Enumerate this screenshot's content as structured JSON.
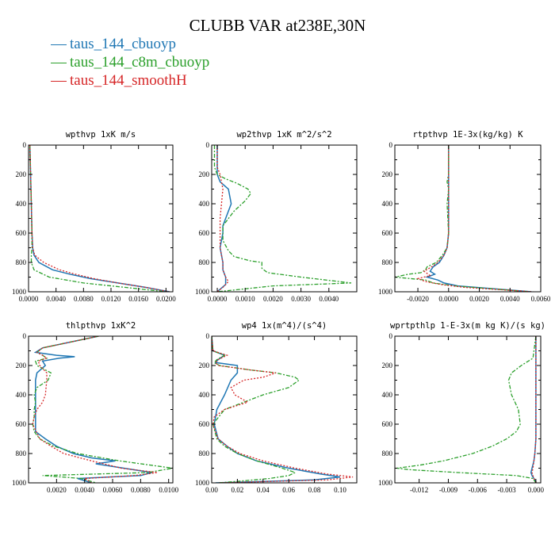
{
  "title": "CLUBB VAR at238E,30N",
  "legend": [
    {
      "name": "taus_144_cbuoyp",
      "color": "#1f77b4"
    },
    {
      "name": "taus_144_c8m_cbuoyp",
      "color": "#2ca02c"
    },
    {
      "name": "taus_144_smoothH",
      "color": "#d62728"
    }
  ],
  "chart_data": [
    {
      "type": "line",
      "title": "wpthvp  1xK m/s",
      "xlim": [
        0,
        0.021
      ],
      "ylim": [
        0,
        1000
      ],
      "y_reversed": true,
      "xticks": [
        "0.0000",
        "0.0040",
        "0.0080",
        "0.0120",
        "0.0160",
        "0.0200"
      ],
      "xtick_values": [
        0,
        0.004,
        0.008,
        0.012,
        0.016,
        0.02
      ],
      "yticks": [
        "0",
        "200",
        "400",
        "600",
        "800",
        "1000"
      ],
      "series": [
        {
          "name": "taus_144_cbuoyp",
          "y": [
            0,
            200,
            400,
            600,
            700,
            750,
            800,
            850,
            880,
            910,
            940,
            970,
            1000
          ],
          "x": [
            0.0002,
            0.0003,
            0.0004,
            0.0005,
            0.0006,
            0.0008,
            0.0015,
            0.0035,
            0.006,
            0.009,
            0.013,
            0.017,
            0.0205
          ]
        },
        {
          "name": "taus_144_c8m_cbuoyp",
          "y": [
            0,
            200,
            400,
            600,
            700,
            750,
            800,
            850,
            900,
            940,
            970,
            1000
          ],
          "x": [
            0.0002,
            0.0003,
            0.0004,
            0.0005,
            0.0005,
            0.0004,
            0.0004,
            0.0008,
            0.003,
            0.008,
            0.014,
            0.02
          ]
        },
        {
          "name": "taus_144_smoothH",
          "y": [
            0,
            200,
            400,
            600,
            700,
            750,
            800,
            850,
            880,
            910,
            940,
            970,
            1000
          ],
          "x": [
            0.0002,
            0.0003,
            0.0004,
            0.0005,
            0.0006,
            0.0009,
            0.0022,
            0.0045,
            0.0068,
            0.0095,
            0.013,
            0.017,
            0.0205
          ]
        }
      ]
    },
    {
      "type": "line",
      "title": "wp2thvp  1xK m^2/s^2",
      "xlim": [
        -0.0002,
        0.005
      ],
      "ylim": [
        0,
        1000
      ],
      "y_reversed": true,
      "xticks": [
        "0.0000",
        "0.0010",
        "0.0020",
        "0.0030",
        "0.0040"
      ],
      "xtick_values": [
        0,
        0.001,
        0.002,
        0.003,
        0.004
      ],
      "yticks": [
        "0",
        "200",
        "400",
        "600",
        "800",
        "1000"
      ],
      "series": [
        {
          "name": "taus_144_cbuoyp",
          "y": [
            0,
            100,
            150,
            200,
            250,
            300,
            400,
            500,
            550,
            600,
            700,
            800,
            850,
            900,
            950,
            1000
          ],
          "x": [
            0,
            0,
            0,
            0,
            0.0001,
            0.0004,
            0.0005,
            0.0003,
            0.0002,
            0.0002,
            0.0001,
            0.0002,
            0.0002,
            0.0003,
            0.0003,
            0
          ]
        },
        {
          "name": "taus_144_c8m_cbuoyp",
          "y": [
            0,
            150,
            200,
            230,
            260,
            300,
            330,
            380,
            450,
            550,
            650,
            720,
            760,
            790,
            800,
            820,
            840,
            870,
            900,
            940,
            960,
            1000
          ],
          "x": [
            -0.0001,
            -0.0001,
            0,
            0.0003,
            0.0007,
            0.0011,
            0.0012,
            0.001,
            0.0006,
            0.0002,
            0.0002,
            0.0004,
            0.0006,
            0.0012,
            0.0016,
            0.0016,
            0.0016,
            0.0018,
            0.003,
            0.0048,
            0.002,
            0
          ]
        },
        {
          "name": "taus_144_smoothH",
          "y": [
            0,
            150,
            200,
            300,
            500,
            600,
            700,
            800,
            850,
            900,
            930,
            950,
            970,
            1000
          ],
          "x": [
            0,
            0,
            0.0001,
            0.0002,
            0.0001,
            0.0001,
            0.0001,
            0.0002,
            0.0002,
            0.0003,
            0.0004,
            0.0003,
            0.0002,
            0
          ]
        }
      ]
    },
    {
      "type": "line",
      "title": "rtpthvp  1E-3x(kg/kg) K",
      "xlim": [
        -0.0035,
        0.006
      ],
      "ylim": [
        0,
        1000
      ],
      "y_reversed": true,
      "xticks": [
        "-0.0020",
        "0.0000",
        "0.0020",
        "0.0040",
        "0.0060"
      ],
      "xtick_values": [
        -0.002,
        0,
        0.002,
        0.004,
        0.006
      ],
      "yticks": [
        "0",
        "200",
        "400",
        "600",
        "800",
        "1000"
      ],
      "series": [
        {
          "name": "taus_144_cbuoyp",
          "y": [
            0,
            200,
            400,
            600,
            700,
            750,
            800,
            830,
            860,
            880,
            900,
            920,
            940,
            960,
            1000
          ],
          "x": [
            0,
            0,
            0,
            0,
            -0.0001,
            -0.0003,
            -0.0006,
            -0.001,
            -0.0012,
            -0.0009,
            -0.0014,
            -0.0007,
            -0.0003,
            0.0006,
            0.0054
          ]
        },
        {
          "name": "taus_144_c8m_cbuoyp",
          "y": [
            0,
            200,
            250,
            300,
            400,
            600,
            700,
            750,
            800,
            830,
            850,
            870,
            880,
            900,
            920,
            940,
            960,
            1000
          ],
          "x": [
            0,
            0,
            -0.0001,
            0,
            -0.0001,
            0,
            -0.0001,
            -0.0004,
            -0.0008,
            -0.0014,
            -0.0015,
            -0.0018,
            -0.0026,
            -0.0035,
            -0.0015,
            -0.001,
            0.0004,
            0.0053
          ]
        },
        {
          "name": "taus_144_smoothH",
          "y": [
            0,
            200,
            400,
            600,
            700,
            750,
            800,
            830,
            860,
            890,
            910,
            930,
            950,
            970,
            1000
          ],
          "x": [
            0,
            0,
            0,
            0,
            -0.0001,
            -0.0003,
            -0.0007,
            -0.0011,
            -0.0016,
            -0.0012,
            -0.002,
            -0.0015,
            -0.0005,
            0.001,
            0.0055
          ]
        }
      ]
    },
    {
      "type": "line",
      "title": "thlpthvp  1xK^2",
      "xlim": [
        0,
        0.0103
      ],
      "ylim": [
        0,
        1000
      ],
      "y_reversed": true,
      "xticks": [
        "0.0020",
        "0.0040",
        "0.0060",
        "0.0080",
        "0.0100"
      ],
      "xtick_values": [
        0.002,
        0.004,
        0.006,
        0.008,
        0.01
      ],
      "yticks": [
        "0",
        "200",
        "400",
        "600",
        "800",
        "1000"
      ],
      "series": [
        {
          "name": "taus_144_cbuoyp",
          "y": [
            0,
            40,
            80,
            110,
            130,
            140,
            150,
            170,
            200,
            250,
            300,
            400,
            500,
            600,
            650,
            700,
            750,
            800,
            830,
            850,
            870,
            900,
            930,
            950,
            970,
            1000
          ],
          "x": [
            0.005,
            0.003,
            0.001,
            0.0005,
            0.002,
            0.0033,
            0.0022,
            0.001,
            0.0012,
            0.0006,
            0.0005,
            0.0005,
            0.0005,
            0.0005,
            0.0005,
            0.0012,
            0.002,
            0.0032,
            0.0045,
            0.0062,
            0.0048,
            0.0068,
            0.0088,
            0.008,
            0.0035,
            0.0045
          ]
        },
        {
          "name": "taus_144_c8m_cbuoyp",
          "y": [
            0,
            40,
            80,
            110,
            130,
            150,
            170,
            200,
            250,
            300,
            350,
            400,
            450,
            500,
            550,
            600,
            650,
            700,
            750,
            800,
            850,
            900,
            930,
            950,
            970,
            1000
          ],
          "x": [
            0.005,
            0.003,
            0.001,
            0.0006,
            0.001,
            0.0013,
            0.0005,
            0.0006,
            0.0016,
            0.0014,
            0.0006,
            0.0004,
            0.0005,
            0.0004,
            0.0004,
            0.0003,
            0.0004,
            0.0008,
            0.0018,
            0.0035,
            0.0065,
            0.0103,
            0.0085,
            0.001,
            0.0038,
            0.0048
          ]
        },
        {
          "name": "taus_144_smoothH",
          "y": [
            0,
            40,
            80,
            110,
            130,
            150,
            170,
            200,
            250,
            300,
            400,
            450,
            500,
            550,
            600,
            700,
            750,
            800,
            850,
            880,
            900,
            930,
            950,
            970,
            1000
          ],
          "x": [
            0.005,
            0.003,
            0.001,
            0.0006,
            0.001,
            0.0013,
            0.0007,
            0.0008,
            0.0013,
            0.0013,
            0.0012,
            0.001,
            0.0006,
            0.0004,
            0.0003,
            0.0008,
            0.0016,
            0.0025,
            0.0045,
            0.0058,
            0.0066,
            0.0092,
            0.0076,
            0.004,
            0.0045
          ]
        }
      ]
    },
    {
      "type": "line",
      "title": "wp4  1x(m^4)/(s^4)",
      "xlim": [
        0,
        0.113
      ],
      "ylim": [
        0,
        1000
      ],
      "y_reversed": true,
      "xticks": [
        "0.00",
        "0.02",
        "0.04",
        "0.06",
        "0.08",
        "0.10"
      ],
      "xtick_values": [
        0,
        0.02,
        0.04,
        0.06,
        0.08,
        0.1
      ],
      "yticks": [
        "0",
        "200",
        "400",
        "600",
        "800",
        "1000"
      ],
      "series": [
        {
          "name": "taus_144_cbuoyp",
          "y": [
            0,
            100,
            130,
            160,
            180,
            200,
            250,
            300,
            400,
            500,
            600,
            700,
            750,
            800,
            850,
            900,
            940,
            960,
            980,
            1000
          ],
          "x": [
            0,
            0.001,
            0.01,
            0.005,
            0.003,
            0.02,
            0.02,
            0.015,
            0.01,
            0.004,
            0.002,
            0.005,
            0.012,
            0.02,
            0.035,
            0.06,
            0.085,
            0.1,
            0.08,
            0.003
          ]
        },
        {
          "name": "taus_144_c8m_cbuoyp",
          "y": [
            0,
            100,
            130,
            160,
            180,
            200,
            230,
            250,
            280,
            300,
            350,
            400,
            450,
            500,
            600,
            700,
            750,
            800,
            850,
            900,
            930,
            950,
            970,
            990,
            1000
          ],
          "x": [
            0,
            0.001,
            0.01,
            0.004,
            0.002,
            0.006,
            0.03,
            0.05,
            0.065,
            0.068,
            0.06,
            0.04,
            0.025,
            0.01,
            0.001,
            0.004,
            0.01,
            0.02,
            0.035,
            0.055,
            0.065,
            0.06,
            0.045,
            0.02,
            0.005
          ]
        },
        {
          "name": "taus_144_smoothH",
          "y": [
            0,
            100,
            130,
            160,
            180,
            200,
            230,
            250,
            280,
            300,
            350,
            400,
            450,
            500,
            550,
            600,
            700,
            750,
            800,
            850,
            900,
            940,
            960,
            980,
            1000
          ],
          "x": [
            0,
            0.001,
            0.012,
            0.005,
            0.003,
            0.005,
            0.03,
            0.05,
            0.04,
            0.025,
            0.015,
            0.018,
            0.028,
            0.01,
            0.002,
            0.001,
            0.005,
            0.012,
            0.022,
            0.04,
            0.065,
            0.09,
            0.11,
            0.09,
            0.005
          ]
        }
      ]
    },
    {
      "type": "line",
      "title": "wprtpthlp  1-E-3x(m kg K)/(s kg)",
      "xlim": [
        -0.0145,
        0.0005
      ],
      "ylim": [
        0,
        1000
      ],
      "y_reversed": true,
      "xticks": [
        "-0.012",
        "-0.009",
        "-0.006",
        "-0.003",
        "0.000"
      ],
      "xtick_values": [
        -0.012,
        -0.009,
        -0.006,
        -0.003,
        0
      ],
      "yticks": [
        "0",
        "200",
        "400",
        "600",
        "800",
        "1000"
      ],
      "series": [
        {
          "name": "taus_144_cbuoyp",
          "y": [
            0,
            200,
            400,
            600,
            700,
            800,
            850,
            900,
            930,
            950,
            970,
            990,
            1000
          ],
          "x": [
            0,
            0,
            0,
            0,
            0,
            -0.0001,
            -0.0002,
            -0.0004,
            -0.0005,
            -0.0004,
            -0.0002,
            0,
            0
          ]
        },
        {
          "name": "taus_144_c8m_cbuoyp",
          "y": [
            0,
            150,
            200,
            250,
            300,
            400,
            500,
            600,
            650,
            700,
            750,
            800,
            850,
            880,
            900,
            910,
            930,
            950,
            970,
            1000
          ],
          "x": [
            0,
            -0.0003,
            -0.0015,
            -0.0025,
            -0.0028,
            -0.0025,
            -0.0018,
            -0.0016,
            -0.002,
            -0.003,
            -0.0045,
            -0.0065,
            -0.0095,
            -0.012,
            -0.0143,
            -0.013,
            -0.008,
            -0.002,
            -0.0003,
            0
          ]
        },
        {
          "name": "taus_144_smoothH",
          "y": [
            0,
            200,
            400,
            600,
            700,
            800,
            850,
            900,
            930,
            950,
            970,
            990,
            1000
          ],
          "x": [
            0,
            0,
            0,
            0,
            0,
            -0.0001,
            -0.0002,
            -0.0003,
            -0.0004,
            -0.0003,
            -0.0002,
            0,
            0
          ]
        }
      ]
    }
  ]
}
